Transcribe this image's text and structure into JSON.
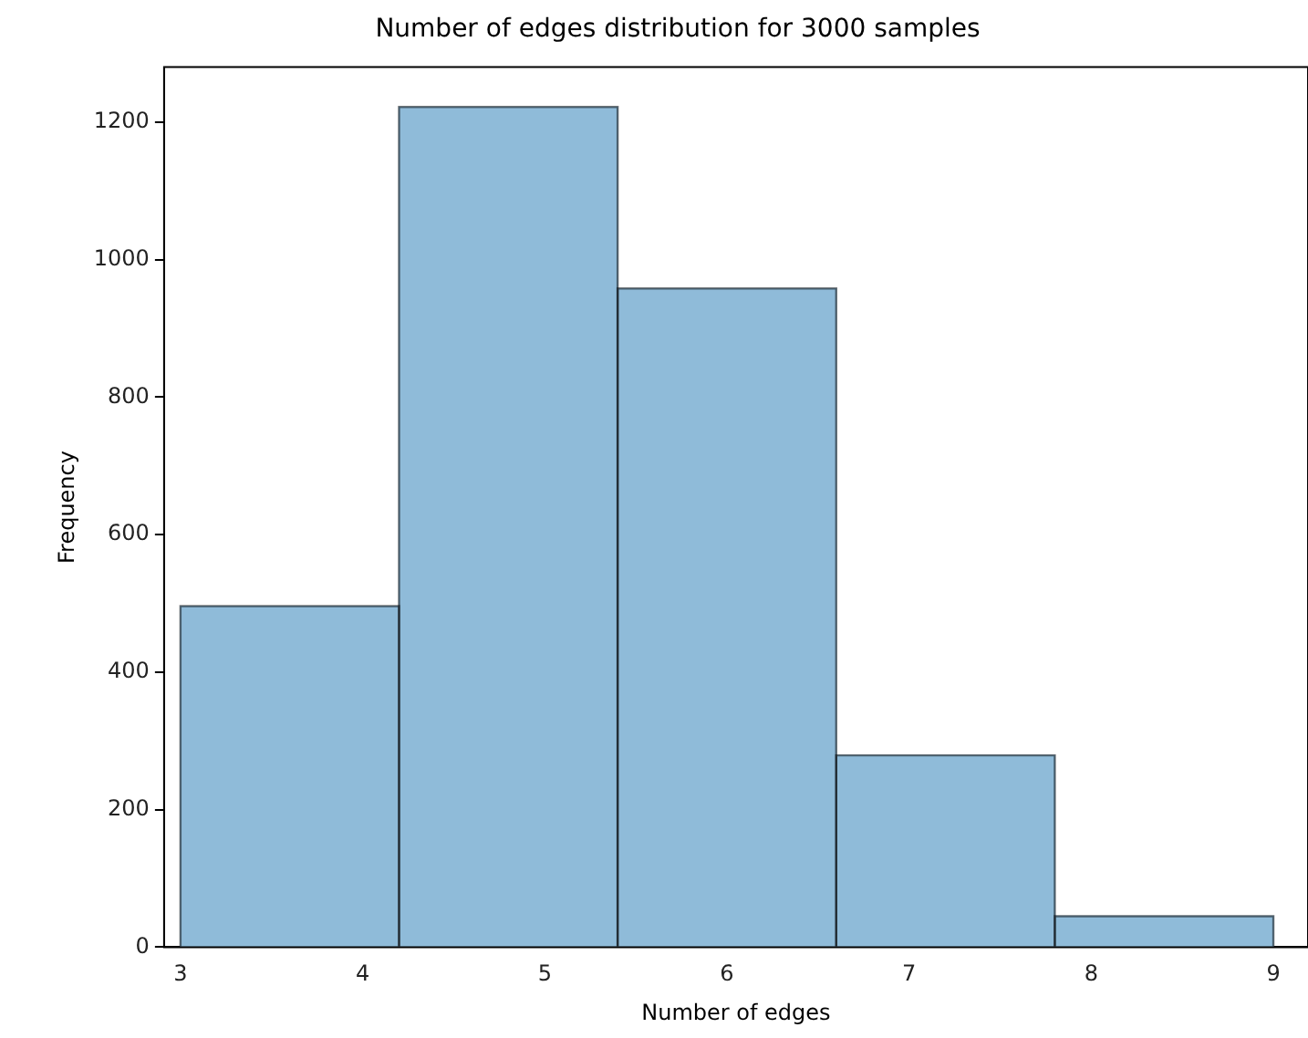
{
  "chart_data": {
    "type": "histogram",
    "title": "Number of edges distribution for 3000 samples",
    "xlabel": "Number of edges",
    "ylabel": "Frequency",
    "bins": [
      3,
      4.2,
      5.4,
      6.6,
      7.8,
      9
    ],
    "values": [
      496,
      1222,
      958,
      279,
      45
    ],
    "color": "#8fbbd9",
    "xlim": [
      2.91,
      9.19
    ],
    "xticks": [
      3,
      4,
      5,
      6,
      7,
      8,
      9
    ],
    "ylim": [
      0,
      1280
    ],
    "yticks": [
      0,
      200,
      400,
      600,
      800,
      1000,
      1200
    ],
    "grid": false,
    "legend": false
  }
}
